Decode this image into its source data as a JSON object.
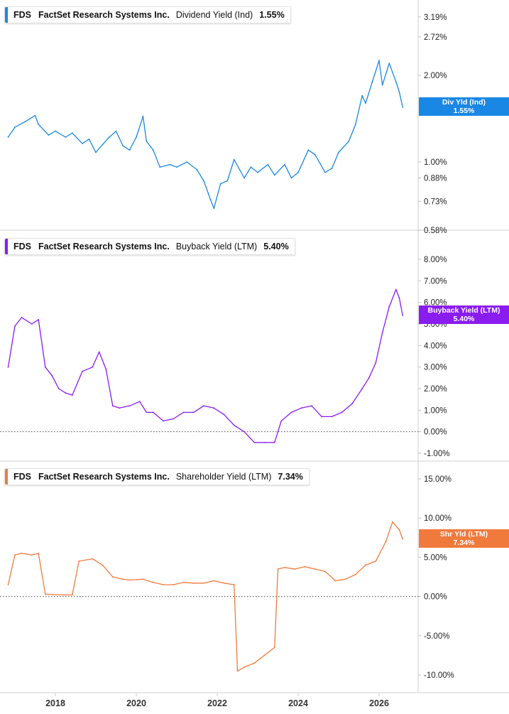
{
  "ticker": "FDS",
  "company": "FactSet Research Systems Inc.",
  "x_axis": {
    "labels": [
      "2018",
      "2020",
      "2022",
      "2024",
      "2026"
    ]
  },
  "panels": [
    {
      "metric": "Dividend Yield (Ind)",
      "value": "1.55%",
      "badge_label": "Div Yld (Ind)",
      "badge_value": "1.55%",
      "color": "#1a87e5",
      "ticks": [
        "3.19%",
        "2.72%",
        "2.00%",
        "1.00%",
        "0.88%",
        "0.73%",
        "0.58%"
      ]
    },
    {
      "metric": "Buyback Yield (LTM)",
      "value": "5.40%",
      "badge_label": "Buyback Yield (LTM)",
      "badge_value": "5.40%",
      "color": "#8a1cf0",
      "ticks": [
        "8.00%",
        "7.00%",
        "6.00%",
        "5.00%",
        "4.00%",
        "3.00%",
        "2.00%",
        "1.00%",
        "0.00%",
        "-1.00%"
      ]
    },
    {
      "metric": "Shareholder Yield (LTM)",
      "value": "7.34%",
      "badge_label": "Shr Yld (LTM)",
      "badge_value": "7.34%",
      "color": "#f07a3c",
      "ticks": [
        "15.00%",
        "10.00%",
        "5.00%",
        "0.00%",
        "-5.00%",
        "-10.00%"
      ]
    }
  ],
  "chart_data": [
    {
      "type": "line",
      "title": "FDS FactSet Research Systems Inc. Dividend Yield (Ind) 1.55%",
      "ylabel": "Dividend Yield (Ind)",
      "y_scale": "log",
      "ylim": [
        0.58,
        3.19
      ],
      "y_ticks": [
        3.19,
        2.72,
        2.0,
        1.0,
        0.88,
        0.73,
        0.58
      ],
      "series": [
        {
          "name": "Dividend Yield (Ind)",
          "x": [
            "2016-11",
            "2017-01",
            "2017-04",
            "2017-07",
            "2017-08",
            "2017-11",
            "2018-01",
            "2018-04",
            "2018-06",
            "2018-09",
            "2018-11",
            "2019-01",
            "2019-03",
            "2019-05",
            "2019-07",
            "2019-09",
            "2019-11",
            "2020-01",
            "2020-03",
            "2020-04",
            "2020-06",
            "2020-08",
            "2020-11",
            "2021-01",
            "2021-04",
            "2021-07",
            "2021-09",
            "2021-11",
            "2021-12",
            "2022-02",
            "2022-04",
            "2022-06",
            "2022-09",
            "2022-11",
            "2023-01",
            "2023-04",
            "2023-06",
            "2023-09",
            "2023-11",
            "2024-01",
            "2024-04",
            "2024-06",
            "2024-09",
            "2024-11",
            "2025-01",
            "2025-04",
            "2025-06",
            "2025-08",
            "2025-09",
            "2025-11",
            "2026-01",
            "2026-02",
            "2026-04",
            "2026-06",
            "2026-07",
            "2026-08"
          ],
          "values": [
            1.22,
            1.32,
            1.38,
            1.45,
            1.35,
            1.24,
            1.28,
            1.22,
            1.26,
            1.16,
            1.2,
            1.08,
            1.15,
            1.22,
            1.28,
            1.14,
            1.1,
            1.22,
            1.44,
            1.18,
            1.1,
            0.96,
            0.98,
            0.96,
            1.0,
            0.94,
            0.86,
            0.74,
            0.69,
            0.84,
            0.86,
            1.02,
            0.88,
            0.96,
            0.92,
            0.98,
            0.9,
            0.98,
            0.88,
            0.92,
            1.1,
            1.06,
            0.92,
            0.95,
            1.08,
            1.18,
            1.35,
            1.7,
            1.6,
            1.9,
            2.25,
            1.85,
            2.2,
            1.9,
            1.75,
            1.55
          ]
        }
      ]
    },
    {
      "type": "line",
      "title": "FDS FactSet Research Systems Inc. Buyback Yield (LTM) 5.40%",
      "ylabel": "Buyback Yield (LTM)",
      "ylim": [
        -1.0,
        8.0
      ],
      "series": [
        {
          "name": "Buyback Yield (LTM)",
          "x": [
            "2016-11",
            "2017-01",
            "2017-03",
            "2017-06",
            "2017-08",
            "2017-10",
            "2017-12",
            "2018-02",
            "2018-04",
            "2018-06",
            "2018-09",
            "2018-12",
            "2019-02",
            "2019-04",
            "2019-06",
            "2019-08",
            "2019-11",
            "2020-02",
            "2020-04",
            "2020-06",
            "2020-09",
            "2020-12",
            "2021-03",
            "2021-06",
            "2021-09",
            "2021-12",
            "2022-03",
            "2022-06",
            "2022-09",
            "2022-12",
            "2023-03",
            "2023-06",
            "2023-08",
            "2023-11",
            "2024-02",
            "2024-05",
            "2024-08",
            "2024-11",
            "2025-02",
            "2025-05",
            "2025-08",
            "2025-10",
            "2025-12",
            "2026-02",
            "2026-04",
            "2026-06",
            "2026-07",
            "2026-08"
          ],
          "values": [
            3.0,
            4.9,
            5.3,
            5.0,
            5.2,
            3.0,
            2.6,
            2.0,
            1.8,
            1.7,
            2.8,
            3.0,
            3.7,
            2.9,
            1.2,
            1.1,
            1.2,
            1.4,
            0.9,
            0.9,
            0.5,
            0.6,
            0.9,
            0.9,
            1.2,
            1.1,
            0.8,
            0.3,
            0.0,
            -0.5,
            -0.5,
            -0.5,
            0.5,
            0.9,
            1.1,
            1.2,
            0.7,
            0.7,
            0.9,
            1.3,
            2.0,
            2.5,
            3.2,
            4.6,
            5.8,
            6.6,
            6.2,
            5.4
          ]
        }
      ]
    },
    {
      "type": "line",
      "title": "FDS FactSet Research Systems Inc. Shareholder Yield (LTM) 7.34%",
      "ylabel": "Shareholder Yield (LTM)",
      "ylim": [
        -10.0,
        15.0
      ],
      "series": [
        {
          "name": "Shareholder Yield (LTM)",
          "x": [
            "2016-11",
            "2017-01",
            "2017-03",
            "2017-06",
            "2017-08",
            "2017-10",
            "2018-03",
            "2018-06",
            "2018-08",
            "2018-12",
            "2019-03",
            "2019-06",
            "2019-09",
            "2019-11",
            "2020-03",
            "2020-06",
            "2020-09",
            "2020-12",
            "2021-03",
            "2021-06",
            "2021-09",
            "2021-12",
            "2022-03",
            "2022-06",
            "2022-07",
            "2022-09",
            "2022-12",
            "2023-03",
            "2023-06",
            "2023-07",
            "2023-09",
            "2023-12",
            "2024-03",
            "2024-06",
            "2024-09",
            "2024-12",
            "2025-03",
            "2025-06",
            "2025-09",
            "2025-12",
            "2026-03",
            "2026-05",
            "2026-07",
            "2026-08"
          ],
          "values": [
            1.5,
            5.3,
            5.5,
            5.3,
            5.5,
            0.3,
            0.2,
            0.2,
            4.5,
            4.8,
            4.0,
            2.5,
            2.2,
            2.1,
            2.2,
            1.8,
            1.5,
            1.5,
            1.8,
            1.7,
            1.7,
            2.0,
            1.7,
            1.5,
            -9.5,
            -9.0,
            -8.5,
            -7.5,
            -6.5,
            3.5,
            3.7,
            3.5,
            3.8,
            3.5,
            3.2,
            2.0,
            2.2,
            2.8,
            4.0,
            4.5,
            7.0,
            9.5,
            8.5,
            7.34
          ]
        }
      ]
    }
  ]
}
